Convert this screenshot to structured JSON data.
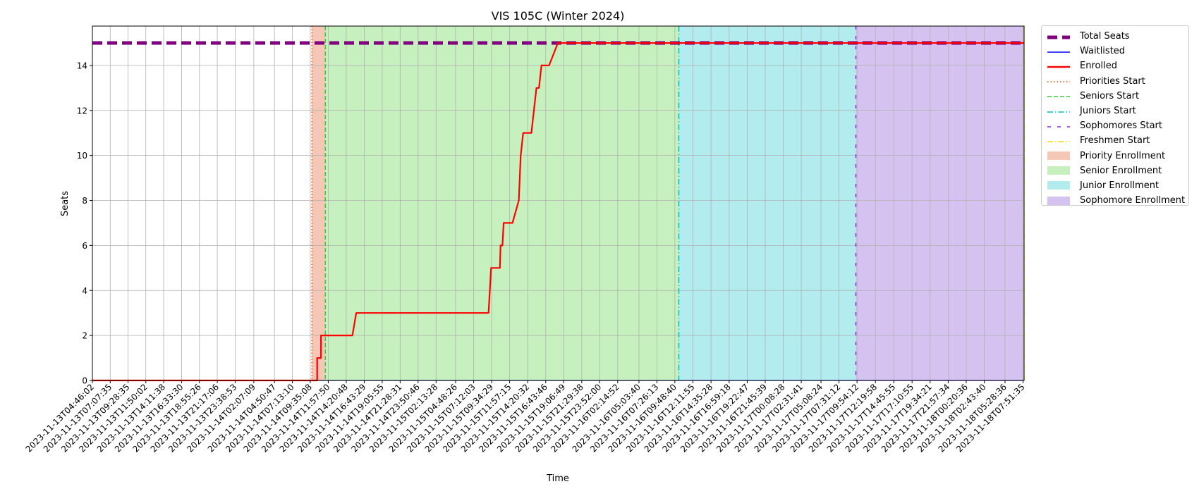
{
  "chart_data": {
    "type": "line",
    "title": "VIS 105C (Winter 2024)",
    "xlabel": "Time",
    "ylabel": "Seats",
    "ylim": [
      0,
      15.75
    ],
    "yticks": [
      0,
      2,
      4,
      6,
      8,
      10,
      12,
      14
    ],
    "x_start": "2023-11-13T04:46:02",
    "x_end": "2023-11-18T08:00:00",
    "grid": true,
    "legend_placement": "outside right, top",
    "x_tick_labels": [
      "2023-11-13T04:46:02",
      "2023-11-13T07:07:35",
      "2023-11-13T09:28:35",
      "2023-11-13T11:50:02",
      "2023-11-13T14:11:38",
      "2023-11-13T16:33:30",
      "2023-11-13T18:55:26",
      "2023-11-13T21:17:06",
      "2023-11-13T23:38:53",
      "2023-11-14T02:07:09",
      "2023-11-14T04:50:47",
      "2023-11-14T07:13:10",
      "2023-11-14T09:35:08",
      "2023-11-14T11:57:50",
      "2023-11-14T14:20:48",
      "2023-11-14T16:43:29",
      "2023-11-14T19:05:55",
      "2023-11-14T21:28:31",
      "2023-11-14T23:50:46",
      "2023-11-15T02:13:28",
      "2023-11-15T04:48:26",
      "2023-11-15T07:12:03",
      "2023-11-15T09:34:29",
      "2023-11-15T11:57:15",
      "2023-11-15T14:20:32",
      "2023-11-15T16:43:46",
      "2023-11-15T19:06:49",
      "2023-11-15T21:29:38",
      "2023-11-15T23:52:00",
      "2023-11-16T02:14:52",
      "2023-11-16T05:03:40",
      "2023-11-16T07:26:13",
      "2023-11-16T09:48:40",
      "2023-11-16T12:11:55",
      "2023-11-16T14:35:28",
      "2023-11-16T16:59:18",
      "2023-11-16T19:22:47",
      "2023-11-16T21:45:39",
      "2023-11-17T00:08:28",
      "2023-11-17T02:31:41",
      "2023-11-17T05:08:24",
      "2023-11-17T07:31:12",
      "2023-11-17T09:54:12",
      "2023-11-17T12:19:58",
      "2023-11-17T14:45:55",
      "2023-11-17T17:10:55",
      "2023-11-17T19:34:21",
      "2023-11-17T21:57:34",
      "2023-11-18T00:20:36",
      "2023-11-18T02:43:40",
      "2023-11-18T05:28:36",
      "2023-11-18T07:51:35"
    ],
    "series": [
      {
        "name": "Total Seats",
        "color": "#800080",
        "style": "dashed-thick",
        "x": [
          "2023-11-13T04:46:02",
          "2023-11-18T08:00:00"
        ],
        "y": [
          15,
          15
        ]
      },
      {
        "name": "Waitlisted",
        "color": "#0000ff",
        "style": "solid-thin",
        "x": [
          "2023-11-13T04:46:02",
          "2023-11-18T08:00:00"
        ],
        "y": [
          0,
          0
        ]
      },
      {
        "name": "Enrolled",
        "color": "#ff0000",
        "style": "solid-thick",
        "x": [
          "2023-11-13T04:46:02",
          "2023-11-14T10:30:00",
          "2023-11-14T10:30:00",
          "2023-11-14T11:00:00",
          "2023-11-14T11:00:00",
          "2023-11-14T15:10:00",
          "2023-11-14T15:40:00",
          "2023-11-15T09:10:00",
          "2023-11-15T09:30:00",
          "2023-11-15T10:40:00",
          "2023-11-15T10:45:00",
          "2023-11-15T11:00:00",
          "2023-11-15T11:10:00",
          "2023-11-15T12:20:00",
          "2023-11-15T13:10:00",
          "2023-11-15T13:25:00",
          "2023-11-15T13:45:00",
          "2023-11-15T14:50:00",
          "2023-11-15T15:30:00",
          "2023-11-15T15:50:00",
          "2023-11-15T16:10:00",
          "2023-11-15T17:10:00",
          "2023-11-15T18:20:00",
          "2023-11-15T18:30:00",
          "2023-11-18T08:00:00"
        ],
        "y": [
          0,
          0,
          1,
          1,
          2,
          2,
          3,
          3,
          5,
          5,
          6,
          6,
          7,
          7,
          8,
          10,
          11,
          11,
          13,
          13,
          14,
          14,
          15,
          15,
          15
        ]
      }
    ],
    "markers": [
      {
        "name": "Priorities Start",
        "color": "#ff4500",
        "style": "dotted",
        "x": "2023-11-14T09:48:00"
      },
      {
        "name": "Seniors Start",
        "color": "#32cd32",
        "style": "dashed",
        "x": "2023-11-14T11:35:00"
      },
      {
        "name": "Juniors Start",
        "color": "#00bfbf",
        "style": "dashdot",
        "x": "2023-11-16T10:20:00"
      },
      {
        "name": "Sophomores Start",
        "color": "#8a2be2",
        "style": "dashed-sparse",
        "x": "2023-11-17T09:45:00"
      },
      {
        "name": "Freshmen Start",
        "color": "#ffd700",
        "style": "dashdot",
        "x": "2023-11-18T08:00:00"
      }
    ],
    "regions": [
      {
        "name": "Priority Enrollment",
        "color": "#f4c7b6",
        "start": "2023-11-14T09:48:00",
        "end": "2023-11-14T11:35:00"
      },
      {
        "name": "Senior Enrollment",
        "color": "#c6f0bd",
        "start": "2023-11-14T11:35:00",
        "end": "2023-11-16T10:20:00"
      },
      {
        "name": "Junior Enrollment",
        "color": "#b3ecee",
        "start": "2023-11-16T10:20:00",
        "end": "2023-11-17T09:45:00"
      },
      {
        "name": "Sophomore Enrollment",
        "color": "#d6c2f0",
        "start": "2023-11-17T09:45:00",
        "end": "2023-11-18T08:00:00"
      }
    ]
  },
  "legend": {
    "items": [
      {
        "label": "Total Seats",
        "kind": "line",
        "color": "#800080",
        "style": "dashed-thick"
      },
      {
        "label": "Waitlisted",
        "kind": "line",
        "color": "#0000ff",
        "style": "solid-thin"
      },
      {
        "label": "Enrolled",
        "kind": "line",
        "color": "#ff0000",
        "style": "solid-thick"
      },
      {
        "label": "Priorities Start",
        "kind": "line",
        "color": "#ff4500",
        "style": "dotted"
      },
      {
        "label": "Seniors Start",
        "kind": "line",
        "color": "#32cd32",
        "style": "dashed"
      },
      {
        "label": "Juniors Start",
        "kind": "line",
        "color": "#00bfbf",
        "style": "dashdot"
      },
      {
        "label": "Sophomores Start",
        "kind": "line",
        "color": "#8a2be2",
        "style": "dashed-sparse"
      },
      {
        "label": "Freshmen Start",
        "kind": "line",
        "color": "#ffd700",
        "style": "dashdot"
      },
      {
        "label": "Priority Enrollment",
        "kind": "patch",
        "color": "#f4c7b6"
      },
      {
        "label": "Senior Enrollment",
        "kind": "patch",
        "color": "#c6f0bd"
      },
      {
        "label": "Junior Enrollment",
        "kind": "patch",
        "color": "#b3ecee"
      },
      {
        "label": "Sophomore Enrollment",
        "kind": "patch",
        "color": "#d6c2f0"
      }
    ]
  }
}
